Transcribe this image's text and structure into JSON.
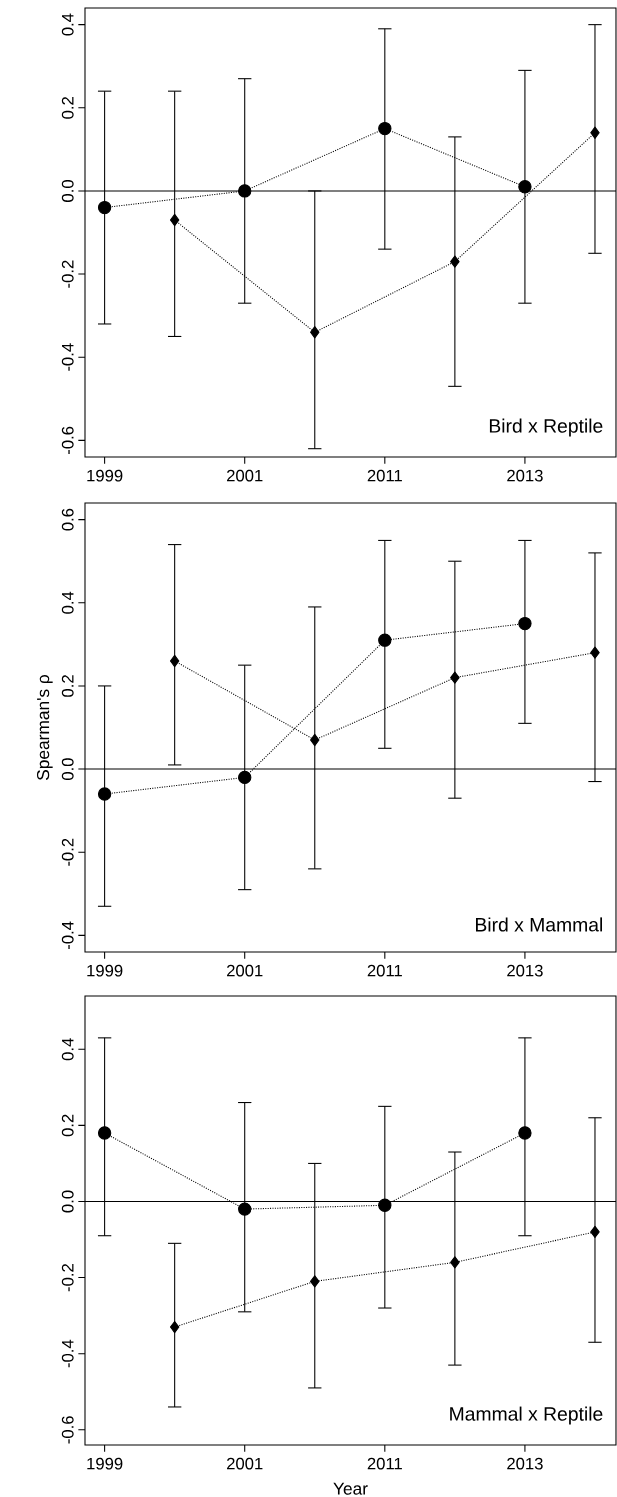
{
  "chart_data": [
    {
      "type": "line",
      "categories": [
        "1999",
        null,
        "2001",
        null,
        "2011",
        null,
        "2013",
        null
      ],
      "line_style": "dotted",
      "ylim": [
        -0.64,
        0.44
      ],
      "yticks": [
        {
          "value": -0.6,
          "label": "-0.6"
        },
        {
          "value": -0.4,
          "label": "-0.4"
        },
        {
          "value": -0.2,
          "label": "-0.2"
        },
        {
          "value": 0,
          "label": "0.0"
        },
        {
          "value": 0.2,
          "label": "0.2"
        },
        {
          "value": 0.4,
          "label": "0.4"
        }
      ],
      "series": [
        {
          "color": "#000000",
          "marker": "circle",
          "values": [
            -0.04,
            null,
            0.0,
            null,
            0.15,
            null,
            0.01,
            null
          ],
          "errors": [
            [
              -0.32,
              0.24
            ],
            null,
            [
              -0.27,
              0.27
            ],
            null,
            [
              -0.14,
              0.39
            ],
            null,
            [
              -0.27,
              0.29
            ],
            null
          ]
        },
        {
          "color": "#000000",
          "marker": "diamond",
          "values": [
            null,
            -0.07,
            null,
            -0.34,
            null,
            -0.17,
            null,
            0.14
          ],
          "errors": [
            null,
            [
              -0.35,
              0.24
            ],
            null,
            [
              -0.62,
              0.0
            ],
            null,
            [
              -0.47,
              0.13
            ],
            null,
            [
              -0.15,
              0.4
            ]
          ]
        }
      ],
      "ref_lines": [
        {
          "axis": "y",
          "value": 0
        }
      ],
      "annotations": [
        "Bird x Reptile"
      ]
    },
    {
      "type": "line",
      "categories": [
        "1999",
        null,
        "2001",
        null,
        "2011",
        null,
        "2013",
        null
      ],
      "line_style": "dotted",
      "ylim": [
        -0.44,
        0.64
      ],
      "yticks": [
        {
          "value": -0.4,
          "label": "-0.4"
        },
        {
          "value": -0.2,
          "label": "-0.2"
        },
        {
          "value": 0,
          "label": "0.0"
        },
        {
          "value": 0.2,
          "label": "0.2"
        },
        {
          "value": 0.4,
          "label": "0.4"
        },
        {
          "value": 0.6,
          "label": "0.6"
        }
      ],
      "ylabel": "Spearman's ρ",
      "series": [
        {
          "color": "#000000",
          "marker": "circle",
          "values": [
            -0.06,
            null,
            -0.02,
            null,
            0.31,
            null,
            0.35,
            null
          ],
          "errors": [
            [
              -0.33,
              0.2
            ],
            null,
            [
              -0.29,
              0.25
            ],
            null,
            [
              0.05,
              0.55
            ],
            null,
            [
              0.11,
              0.55
            ],
            null
          ]
        },
        {
          "color": "#000000",
          "marker": "diamond",
          "values": [
            null,
            0.26,
            null,
            0.07,
            null,
            0.22,
            null,
            0.28
          ],
          "errors": [
            null,
            [
              0.01,
              0.54
            ],
            null,
            [
              -0.24,
              0.39
            ],
            null,
            [
              -0.07,
              0.5
            ],
            null,
            [
              -0.03,
              0.52
            ]
          ]
        }
      ],
      "ref_lines": [
        {
          "axis": "y",
          "value": 0
        }
      ],
      "annotations": [
        "Bird x Mammal"
      ]
    },
    {
      "type": "line",
      "categories": [
        "1999",
        null,
        "2001",
        null,
        "2011",
        null,
        "2013",
        null
      ],
      "line_style": "dotted",
      "ylim": [
        -0.64,
        0.54
      ],
      "yticks": [
        {
          "value": -0.6,
          "label": "-0.6"
        },
        {
          "value": -0.4,
          "label": "-0.4"
        },
        {
          "value": -0.2,
          "label": "-0.2"
        },
        {
          "value": 0,
          "label": "0.0"
        },
        {
          "value": 0.2,
          "label": "0.2"
        },
        {
          "value": 0.4,
          "label": "0.4"
        }
      ],
      "xlabel": "Year",
      "series": [
        {
          "color": "#000000",
          "marker": "circle",
          "values": [
            0.18,
            null,
            -0.02,
            null,
            -0.01,
            null,
            0.18,
            null
          ],
          "errors": [
            [
              -0.09,
              0.43
            ],
            null,
            [
              -0.29,
              0.26
            ],
            null,
            [
              -0.28,
              0.25
            ],
            null,
            [
              -0.09,
              0.43
            ],
            null
          ]
        },
        {
          "color": "#000000",
          "marker": "diamond",
          "values": [
            null,
            -0.33,
            null,
            -0.21,
            null,
            -0.16,
            null,
            -0.08
          ],
          "errors": [
            null,
            [
              -0.54,
              -0.11
            ],
            null,
            [
              -0.49,
              0.1
            ],
            null,
            [
              -0.43,
              0.13
            ],
            null,
            [
              -0.37,
              0.22
            ]
          ]
        }
      ],
      "ref_lines": [
        {
          "axis": "y",
          "value": 0
        }
      ],
      "annotations": [
        "Mammal x Reptile"
      ]
    }
  ]
}
